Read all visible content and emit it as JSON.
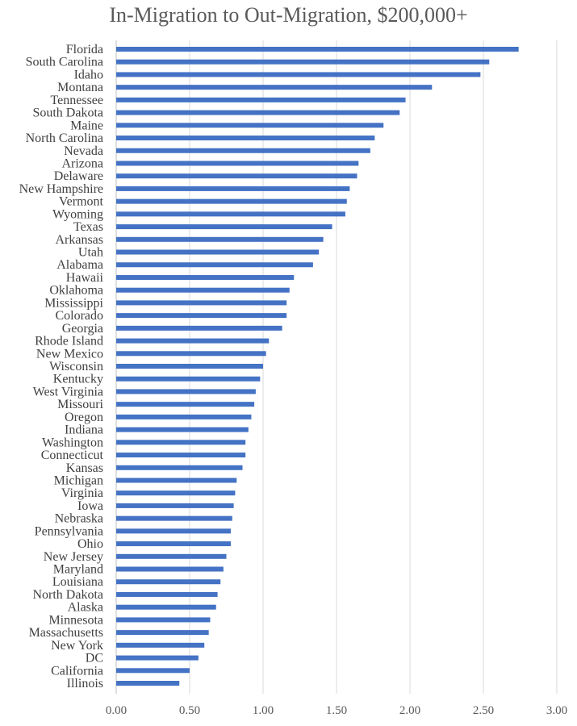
{
  "chart_data": {
    "type": "bar",
    "orientation": "horizontal",
    "title": "In-Migration to Out-Migration, $200,000+",
    "xlabel": "",
    "ylabel": "",
    "xlim": [
      0,
      3
    ],
    "x_ticks": [
      "0.00",
      "0.50",
      "1.00",
      "1.50",
      "2.00",
      "2.50",
      "3.00"
    ],
    "grid": "vertical",
    "legend": "none",
    "bar_color": "#4472C4",
    "categories": [
      "Florida",
      "South Carolina",
      "Idaho",
      "Montana",
      "Tennessee",
      "South Dakota",
      "Maine",
      "North Carolina",
      "Nevada",
      "Arizona",
      "Delaware",
      "New Hampshire",
      "Vermont",
      "Wyoming",
      "Texas",
      "Arkansas",
      "Utah",
      "Alabama",
      "Hawaii",
      "Oklahoma",
      "Mississippi",
      "Colorado",
      "Georgia",
      "Rhode Island",
      "New Mexico",
      "Wisconsin",
      "Kentucky",
      "West Virginia",
      "Missouri",
      "Oregon",
      "Indiana",
      "Washington",
      "Connecticut",
      "Kansas",
      "Michigan",
      "Virginia",
      "Iowa",
      "Nebraska",
      "Pennsylvania",
      "Ohio",
      "New Jersey",
      "Maryland",
      "Louisiana",
      "North Dakota",
      "Alaska",
      "Minnesota",
      "Massachusetts",
      "New York",
      "DC",
      "California",
      "Illinois"
    ],
    "values": [
      2.74,
      2.54,
      2.48,
      2.15,
      1.97,
      1.93,
      1.82,
      1.76,
      1.73,
      1.65,
      1.64,
      1.59,
      1.57,
      1.56,
      1.47,
      1.41,
      1.38,
      1.34,
      1.21,
      1.18,
      1.16,
      1.16,
      1.13,
      1.04,
      1.02,
      1.0,
      0.98,
      0.95,
      0.94,
      0.92,
      0.9,
      0.88,
      0.88,
      0.86,
      0.82,
      0.81,
      0.8,
      0.79,
      0.78,
      0.78,
      0.75,
      0.73,
      0.71,
      0.69,
      0.68,
      0.64,
      0.63,
      0.6,
      0.56,
      0.5,
      0.43
    ]
  }
}
